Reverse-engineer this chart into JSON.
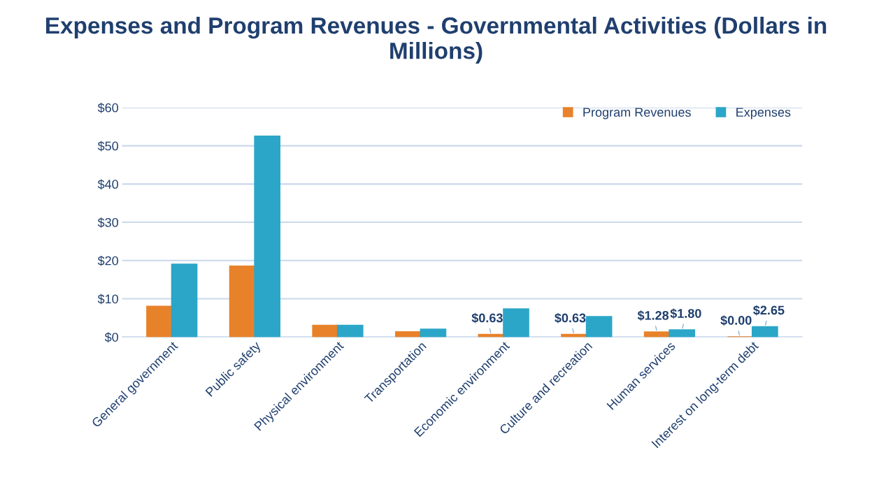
{
  "chart_data": {
    "type": "bar",
    "title": "Expenses and Program Revenues - Governmental Activities (Dollars in Millions)",
    "categories": [
      "General government",
      "Public safety",
      "Physical environment",
      "Transportation",
      "Economic environment",
      "Culture and recreation",
      "Human services",
      "Interest on long-term debt"
    ],
    "series": [
      {
        "name": "Program Revenues",
        "color": "#e8822a",
        "values": [
          8,
          18.5,
          3,
          1.3,
          0.63,
          0.63,
          1.28,
          0.0
        ],
        "value_labels": [
          null,
          null,
          null,
          null,
          "$0.63",
          "$0.63",
          "$1.28",
          "$0.00"
        ]
      },
      {
        "name": "Expenses",
        "color": "#2ba6c8",
        "values": [
          19,
          52.5,
          3,
          2,
          7.3,
          5.3,
          1.8,
          2.65
        ],
        "value_labels": [
          null,
          null,
          null,
          null,
          null,
          null,
          "$1.80",
          "$2.65"
        ]
      }
    ],
    "ylim": [
      0,
      60
    ],
    "yticks": [
      {
        "value": 0,
        "label": "$0"
      },
      {
        "value": 10,
        "label": "$10"
      },
      {
        "value": 20,
        "label": "$20"
      },
      {
        "value": 30,
        "label": "$30"
      },
      {
        "value": 40,
        "label": "$40"
      },
      {
        "value": 50,
        "label": "$50"
      },
      {
        "value": 60,
        "label": "$60"
      }
    ],
    "grid": "y",
    "legend": "top right"
  }
}
